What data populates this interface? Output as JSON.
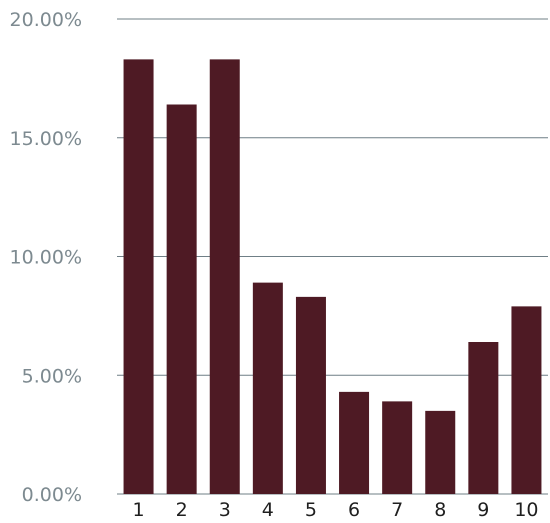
{
  "chart_data": {
    "type": "bar",
    "title": "",
    "xlabel": "",
    "ylabel": "",
    "categories": [
      "1",
      "2",
      "3",
      "4",
      "5",
      "6",
      "7",
      "8",
      "9",
      "10"
    ],
    "values": [
      18.3,
      16.4,
      18.3,
      8.9,
      8.3,
      4.3,
      3.9,
      3.5,
      6.4,
      7.9
    ],
    "ylim": [
      0,
      20
    ],
    "yticks": [
      {
        "value": 0,
        "label": "0.00%"
      },
      {
        "value": 5,
        "label": "5.00%"
      },
      {
        "value": 10,
        "label": "10.00%"
      },
      {
        "value": 15,
        "label": "15.00%"
      },
      {
        "value": 20,
        "label": "20.00%"
      }
    ],
    "grid": true,
    "legend": "none",
    "colors": {
      "bar": "#4e1a24",
      "grid": "#6f7f86",
      "y_tick_text": "#7d8a90",
      "x_tick_text": "#1f1f1f"
    }
  }
}
